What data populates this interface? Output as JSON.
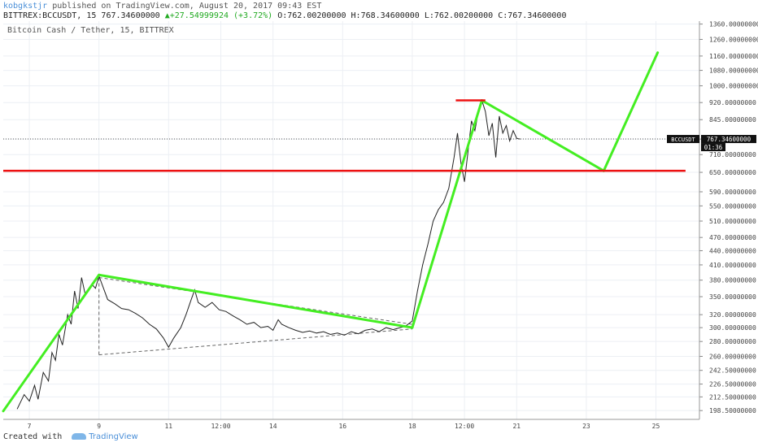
{
  "header": {
    "author": "kobgkstjr",
    "published_text": " published on TradingView.com, August 20, 2017 09:43 EST",
    "symbol": "BITTREX:BCCUSDT, 15",
    "last_price": "767.34600000",
    "change": "+27.54999924 (+3.72%)",
    "open": "O:762.00200000",
    "high": "H:768.34600000",
    "low": "L:762.00200000",
    "close": "C:767.34600000"
  },
  "footer": {
    "created_with": "Created with",
    "brand": "TradingView"
  },
  "chart_data": {
    "type": "line",
    "title": "Bitcoin Cash / Tether, 15, BITTREX",
    "y_scale": "log",
    "ylim": [
      190,
      1380
    ],
    "y_ticks": [
      "1360.00000000",
      "1260.00000000",
      "1160.00000000",
      "1080.00000000",
      "1000.00000000",
      "920.00000000",
      "845.00000000",
      "767.00000000",
      "710.00000000",
      "650.00000000",
      "590.00000000",
      "550.00000000",
      "510.00000000",
      "470.00000000",
      "440.00000000",
      "410.00000000",
      "380.00000000",
      "350.00000000",
      "320.00000000",
      "300.00000000",
      "280.00000000",
      "260.00000000",
      "242.50000000",
      "226.50000000",
      "212.50000000",
      "198.50000000"
    ],
    "x_ticks": [
      {
        "label": "7",
        "t": 0.35
      },
      {
        "label": "9",
        "t": 2.35
      },
      {
        "label": "11",
        "t": 4.35
      },
      {
        "label": "12:00",
        "t": 5.85
      },
      {
        "label": "14",
        "t": 7.35
      },
      {
        "label": "16",
        "t": 9.35
      },
      {
        "label": "18",
        "t": 11.35
      },
      {
        "label": "12:00",
        "t": 12.85
      },
      {
        "label": "21",
        "t": 14.35
      },
      {
        "label": "23",
        "t": 16.35
      },
      {
        "label": "25",
        "t": 18.35
      }
    ],
    "xlim": [
      -0.4,
      19.6
    ],
    "grid": true,
    "current_price_label": {
      "symbol": "BCCUSDT",
      "value": "767.34600000",
      "countdown": "01:36"
    },
    "price_series": [
      [
        0.0,
        200
      ],
      [
        0.2,
        215
      ],
      [
        0.35,
        208
      ],
      [
        0.5,
        225
      ],
      [
        0.6,
        210
      ],
      [
        0.75,
        240
      ],
      [
        0.9,
        230
      ],
      [
        1.0,
        265
      ],
      [
        1.1,
        255
      ],
      [
        1.2,
        290
      ],
      [
        1.3,
        275
      ],
      [
        1.45,
        320
      ],
      [
        1.55,
        305
      ],
      [
        1.65,
        360
      ],
      [
        1.75,
        330
      ],
      [
        1.85,
        385
      ],
      [
        1.95,
        355
      ],
      [
        2.05,
        360
      ],
      [
        2.15,
        372
      ],
      [
        2.25,
        365
      ],
      [
        2.35,
        388
      ],
      [
        2.45,
        370
      ],
      [
        2.6,
        345
      ],
      [
        2.8,
        338
      ],
      [
        3.0,
        330
      ],
      [
        3.2,
        328
      ],
      [
        3.4,
        322
      ],
      [
        3.6,
        315
      ],
      [
        3.8,
        305
      ],
      [
        4.0,
        298
      ],
      [
        4.2,
        285
      ],
      [
        4.35,
        272
      ],
      [
        4.5,
        285
      ],
      [
        4.7,
        300
      ],
      [
        4.85,
        320
      ],
      [
        5.0,
        345
      ],
      [
        5.1,
        362
      ],
      [
        5.2,
        340
      ],
      [
        5.4,
        332
      ],
      [
        5.6,
        340
      ],
      [
        5.8,
        328
      ],
      [
        6.0,
        325
      ],
      [
        6.2,
        318
      ],
      [
        6.4,
        312
      ],
      [
        6.6,
        305
      ],
      [
        6.8,
        308
      ],
      [
        7.0,
        300
      ],
      [
        7.2,
        302
      ],
      [
        7.35,
        296
      ],
      [
        7.5,
        312
      ],
      [
        7.6,
        305
      ],
      [
        7.8,
        300
      ],
      [
        8.0,
        296
      ],
      [
        8.2,
        293
      ],
      [
        8.4,
        295
      ],
      [
        8.6,
        292
      ],
      [
        8.8,
        294
      ],
      [
        9.0,
        290
      ],
      [
        9.2,
        292
      ],
      [
        9.4,
        289
      ],
      [
        9.6,
        294
      ],
      [
        9.8,
        291
      ],
      [
        10.0,
        296
      ],
      [
        10.2,
        298
      ],
      [
        10.4,
        294
      ],
      [
        10.6,
        300
      ],
      [
        10.8,
        297
      ],
      [
        11.0,
        300
      ],
      [
        11.15,
        302
      ],
      [
        11.35,
        310
      ],
      [
        11.5,
        360
      ],
      [
        11.65,
        410
      ],
      [
        11.8,
        455
      ],
      [
        11.95,
        510
      ],
      [
        12.1,
        540
      ],
      [
        12.25,
        560
      ],
      [
        12.4,
        600
      ],
      [
        12.55,
        700
      ],
      [
        12.65,
        790
      ],
      [
        12.75,
        680
      ],
      [
        12.85,
        620
      ],
      [
        12.95,
        720
      ],
      [
        13.05,
        840
      ],
      [
        13.15,
        800
      ],
      [
        13.25,
        880
      ],
      [
        13.35,
        930
      ],
      [
        13.45,
        880
      ],
      [
        13.55,
        780
      ],
      [
        13.65,
        830
      ],
      [
        13.75,
        700
      ],
      [
        13.85,
        860
      ],
      [
        13.95,
        790
      ],
      [
        14.05,
        820
      ],
      [
        14.15,
        760
      ],
      [
        14.25,
        800
      ],
      [
        14.35,
        770
      ],
      [
        14.45,
        767
      ]
    ],
    "green_lines": [
      [
        [
          -0.4,
          198
        ],
        [
          2.35,
          390
        ]
      ],
      [
        [
          2.35,
          390
        ],
        [
          11.35,
          300
        ]
      ],
      [
        [
          11.35,
          300
        ],
        [
          13.35,
          930
        ]
      ],
      [
        [
          13.35,
          930
        ],
        [
          16.85,
          655
        ]
      ],
      [
        [
          16.85,
          655
        ],
        [
          18.4,
          1180
        ]
      ]
    ],
    "red_lines": [
      {
        "price": 930,
        "t0": 12.6,
        "t1": 13.45
      },
      {
        "price": 655,
        "t0": -0.4,
        "t1": 19.2
      }
    ],
    "dashed_lines": [
      [
        [
          2.35,
          385
        ],
        [
          11.35,
          305
        ]
      ],
      [
        [
          2.35,
          262
        ],
        [
          11.35,
          298
        ]
      ],
      [
        [
          2.35,
          385
        ],
        [
          2.35,
          262
        ]
      ]
    ],
    "colors": {
      "trend": "#44ee22",
      "level": "#ee1111",
      "price": "#222222",
      "grid": "#eceff4",
      "axis": "#444444"
    }
  }
}
